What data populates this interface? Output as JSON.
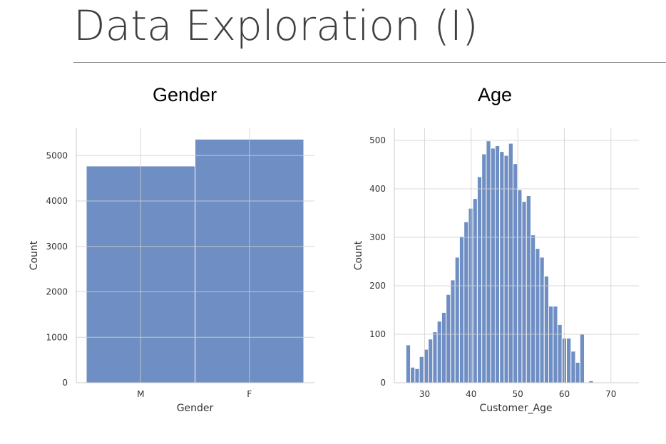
{
  "page": {
    "title": "Data Exploration (I)"
  },
  "colors": {
    "bar": "#6f8fc4",
    "bar_edge": "#5a79b0",
    "grid": "#cfcfcf",
    "axis": "#cccccc",
    "text": "#333333"
  },
  "chart_data": [
    {
      "type": "bar",
      "title": "Gender",
      "xlabel": "Gender",
      "ylabel": "Count",
      "categories": [
        "M",
        "F"
      ],
      "values": [
        4770,
        5360
      ],
      "ylim": [
        0,
        5600
      ],
      "yticks": [
        0,
        1000,
        2000,
        3000,
        4000,
        5000
      ],
      "grid": true
    },
    {
      "type": "bar",
      "title": "Age",
      "xlabel": "Customer_Age",
      "ylabel": "Count",
      "bin_start": 26,
      "bin_width": 0.9574,
      "values": [
        78,
        32,
        29,
        54,
        69,
        90,
        105,
        127,
        145,
        182,
        212,
        259,
        302,
        332,
        360,
        380,
        425,
        472,
        499,
        484,
        489,
        477,
        469,
        494,
        452,
        398,
        374,
        386,
        305,
        277,
        259,
        220,
        158,
        158,
        120,
        92,
        92,
        65,
        42,
        100,
        0,
        4
      ],
      "xlim": [
        23.5,
        76
      ],
      "ylim": [
        0,
        525
      ],
      "xticks": [
        30,
        40,
        50,
        60,
        70
      ],
      "yticks": [
        0,
        100,
        200,
        300,
        400,
        500
      ],
      "grid": true
    }
  ]
}
